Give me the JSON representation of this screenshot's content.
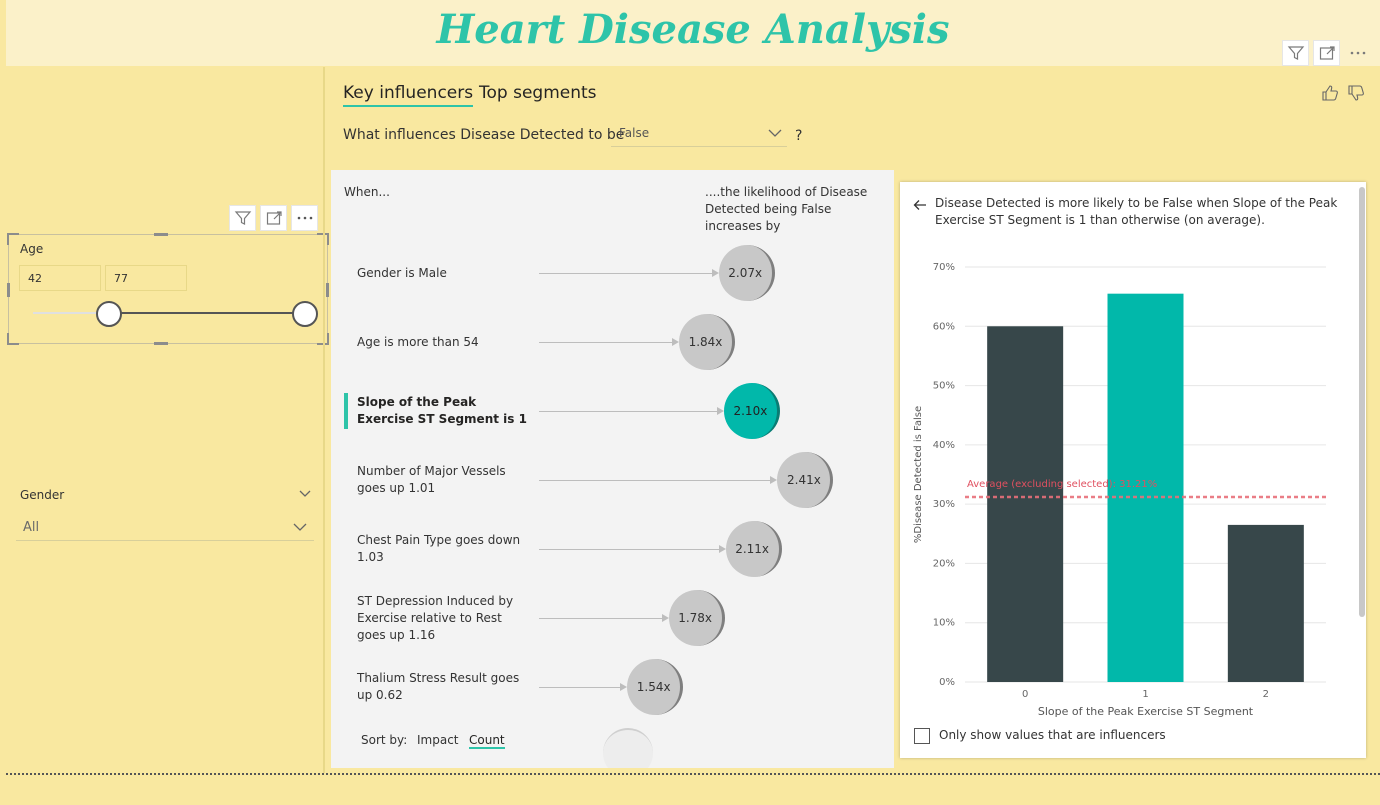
{
  "report": {
    "title": "Heart Disease Analysis"
  },
  "colors": {
    "accent": "#2ec4a9",
    "selected_bar": "#01b8aa",
    "bar": "#37474a",
    "average_line": "#e8707a",
    "background": "#f9e8a0"
  },
  "icons": {
    "filter": "filter-icon",
    "focus": "focus-mode-icon",
    "more": "more-options-icon"
  },
  "age_slicer": {
    "title": "Age",
    "min": "42",
    "max": "77",
    "range_min_fraction": 0.0,
    "range_max_fraction": 1.0
  },
  "gender_slicer": {
    "title": "Gender",
    "value": "All"
  },
  "key_influencers": {
    "tabs": [
      "Key influencers",
      "Top segments"
    ],
    "question": "What influences Disease Detected to be",
    "selected_value": "False",
    "question_mark": "?",
    "col_when": "When...",
    "col_likelihood": "....the likelihood of Disease Detected being False increases by",
    "influencers": [
      {
        "label": "Gender is Male",
        "value": "2.07x",
        "multiplier": 2.07,
        "selected": false
      },
      {
        "label": "Age is more than 54",
        "value": "1.84x",
        "multiplier": 1.84,
        "selected": false
      },
      {
        "label": "Slope of the Peak Exercise ST Segment is 1",
        "value": "2.10x",
        "multiplier": 2.1,
        "selected": true
      },
      {
        "label": "Number of Major Vessels goes up 1.01",
        "value": "2.41x",
        "multiplier": 2.41,
        "selected": false
      },
      {
        "label": "Chest Pain Type goes down 1.03",
        "value": "2.11x",
        "multiplier": 2.11,
        "selected": false
      },
      {
        "label": "ST Depression Induced by Exercise relative to Rest goes up 1.16",
        "value": "1.78x",
        "multiplier": 1.78,
        "selected": false
      },
      {
        "label": "Thalium Stress Result goes up 0.62",
        "value": "1.54x",
        "multiplier": 1.54,
        "selected": false
      }
    ],
    "sort_by": {
      "label": "Sort by:",
      "options": [
        "Impact",
        "Count"
      ],
      "active": "Count"
    },
    "detail": {
      "text": "Disease Detected is more likely to be False when Slope of the Peak Exercise ST Segment is 1 than otherwise (on average).",
      "checkbox_label": "Only show values that are influencers"
    }
  },
  "chart_data": {
    "type": "bar",
    "categories": [
      "0",
      "1",
      "2"
    ],
    "values": [
      60.0,
      65.5,
      26.5
    ],
    "selected_category": "1",
    "xlabel": "Slope of the Peak Exercise ST Segment",
    "ylabel": "%Disease Detected is False",
    "ylim": [
      0,
      70
    ],
    "yticks": [
      "0%",
      "10%",
      "20%",
      "30%",
      "40%",
      "50%",
      "60%",
      "70%"
    ],
    "grid": true,
    "reference_line": {
      "label": "Average (excluding selected): 31.21%",
      "value": 31.21
    }
  }
}
